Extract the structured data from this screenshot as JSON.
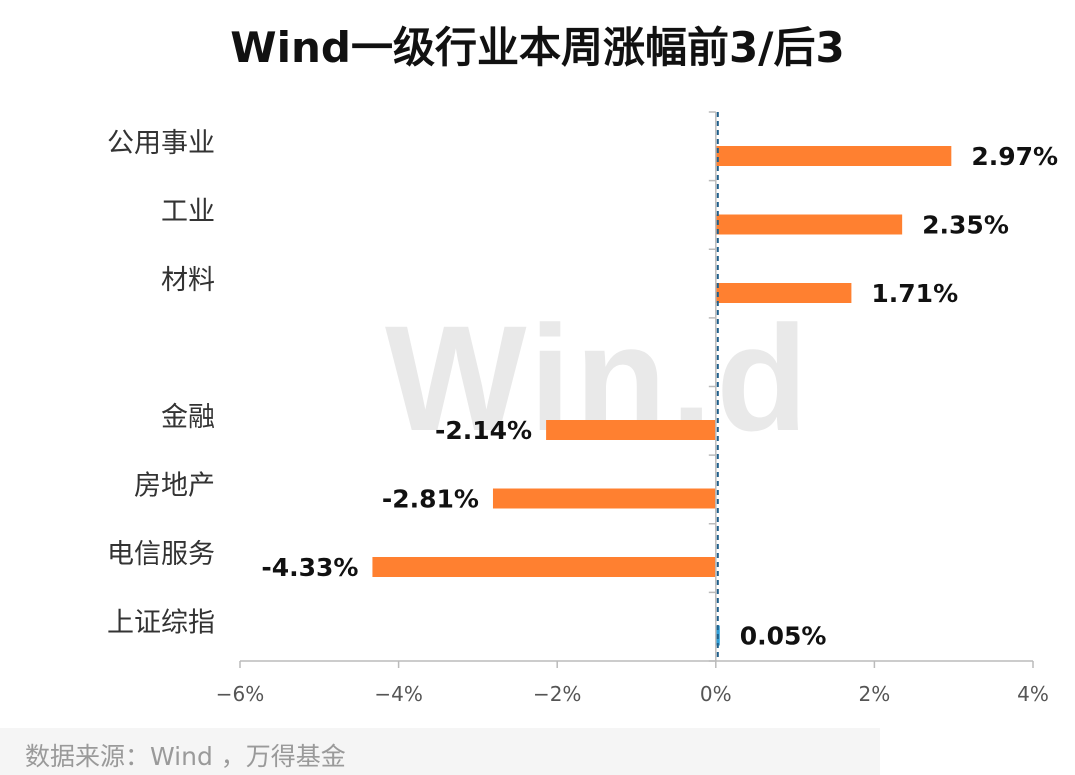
{
  "chart_data": {
    "type": "bar",
    "orientation": "horizontal",
    "title": "Wind一级行业本周涨幅前3/后3",
    "categories": [
      "公用事业",
      "工业",
      "材料",
      "",
      "金融",
      "房地产",
      "电信服务",
      "上证综指"
    ],
    "values": [
      2.97,
      2.35,
      1.71,
      null,
      -2.14,
      -2.81,
      -4.33,
      0.05
    ],
    "value_labels": [
      "2.97%",
      "2.35%",
      "1.71%",
      "",
      "-2.14%",
      "-2.81%",
      "-4.33%",
      "0.05%"
    ],
    "xlim": [
      -6,
      4
    ],
    "x_ticks": [
      -6,
      -4,
      -2,
      0,
      2,
      4
    ],
    "x_tick_labels": [
      "−6%",
      "−4%",
      "−2%",
      "0%",
      "2%",
      "4%"
    ],
    "colors": {
      "bar": "#ff8030",
      "index_bar": "#2e9fd8",
      "zero_line": "#1f5f8b"
    },
    "grid": false,
    "legend": "none"
  },
  "watermark": "Win.d",
  "source": "数据来源：Wind ，万得基金"
}
